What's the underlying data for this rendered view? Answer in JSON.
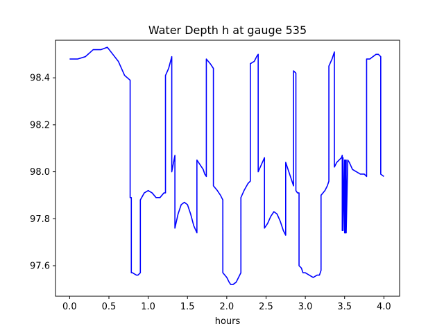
{
  "chart_data": {
    "type": "line",
    "title": "Water Depth h at gauge 535",
    "xlabel": "hours",
    "ylabel": "",
    "xlim": [
      -0.18,
      4.2
    ],
    "ylim": [
      97.47,
      98.56
    ],
    "xticks": [
      0.0,
      0.5,
      1.0,
      1.5,
      2.0,
      2.5,
      3.0,
      3.5,
      4.0
    ],
    "xtick_labels": [
      "0.0",
      "0.5",
      "1.0",
      "1.5",
      "2.0",
      "2.5",
      "3.0",
      "3.5",
      "4.0"
    ],
    "yticks": [
      97.6,
      97.8,
      98.0,
      98.2,
      98.4
    ],
    "ytick_labels": [
      "97.6",
      "97.8",
      "98.0",
      "98.2",
      "98.4"
    ],
    "grid": false,
    "series": [
      {
        "color": "#0000ff",
        "x": [
          0.0,
          0.1,
          0.2,
          0.3,
          0.4,
          0.48,
          0.55,
          0.62,
          0.7,
          0.77,
          0.77,
          0.785,
          0.785,
          0.8,
          0.85,
          0.87,
          0.9,
          0.9,
          0.95,
          1.0,
          1.05,
          1.1,
          1.15,
          1.2,
          1.22,
          1.22,
          1.26,
          1.3,
          1.3,
          1.34,
          1.34,
          1.38,
          1.42,
          1.46,
          1.5,
          1.54,
          1.58,
          1.62,
          1.62,
          1.66,
          1.7,
          1.72,
          1.74,
          1.74,
          1.79,
          1.83,
          1.83,
          1.88,
          1.92,
          1.95,
          1.95,
          2.0,
          2.03,
          2.05,
          2.08,
          2.12,
          2.15,
          2.18,
          2.18,
          2.22,
          2.27,
          2.3,
          2.3,
          2.35,
          2.38,
          2.4,
          2.4,
          2.44,
          2.48,
          2.48,
          2.52,
          2.56,
          2.6,
          2.64,
          2.68,
          2.72,
          2.75,
          2.75,
          2.8,
          2.83,
          2.85,
          2.85,
          2.88,
          2.88,
          2.9,
          2.92,
          2.92,
          2.95,
          2.97,
          3.0,
          3.05,
          3.1,
          3.15,
          3.18,
          3.2,
          3.2,
          3.25,
          3.28,
          3.3,
          3.3,
          3.34,
          3.37,
          3.37,
          3.4,
          3.43,
          3.46,
          3.47,
          3.47,
          3.48,
          3.48,
          3.5,
          3.5,
          3.51,
          3.51,
          3.52,
          3.52,
          3.54,
          3.56,
          3.6,
          3.65,
          3.7,
          3.75,
          3.78,
          3.78,
          3.82,
          3.86,
          3.9,
          3.93,
          3.96,
          3.96,
          4.0
        ],
        "y": [
          98.48,
          98.48,
          98.49,
          98.52,
          98.52,
          98.53,
          98.5,
          98.47,
          98.41,
          98.39,
          97.89,
          97.89,
          97.57,
          97.57,
          97.56,
          97.56,
          97.57,
          97.88,
          97.91,
          97.92,
          97.91,
          97.89,
          97.89,
          97.91,
          97.91,
          98.41,
          98.44,
          98.49,
          98.0,
          98.07,
          97.76,
          97.82,
          97.86,
          97.87,
          97.86,
          97.82,
          97.77,
          97.74,
          98.05,
          98.03,
          98.01,
          97.99,
          97.98,
          98.48,
          98.46,
          98.44,
          97.94,
          97.92,
          97.9,
          97.88,
          97.57,
          97.55,
          97.53,
          97.52,
          97.52,
          97.53,
          97.55,
          97.57,
          97.89,
          97.92,
          97.95,
          97.96,
          98.46,
          98.47,
          98.49,
          98.5,
          98.0,
          98.03,
          98.06,
          97.76,
          97.78,
          97.81,
          97.83,
          97.82,
          97.79,
          97.75,
          97.73,
          98.04,
          97.99,
          97.96,
          97.94,
          98.43,
          98.42,
          97.92,
          97.91,
          97.91,
          97.6,
          97.59,
          97.57,
          97.57,
          97.56,
          97.55,
          97.56,
          97.56,
          97.58,
          97.9,
          97.92,
          97.94,
          97.96,
          98.45,
          98.48,
          98.51,
          98.02,
          98.04,
          98.05,
          98.06,
          98.07,
          97.75,
          98.06,
          97.75,
          98.05,
          97.74,
          98.05,
          97.74,
          98.05,
          97.74,
          98.05,
          98.04,
          98.01,
          98.0,
          97.99,
          97.99,
          97.98,
          98.48,
          98.48,
          98.49,
          98.5,
          98.5,
          98.49,
          97.99,
          97.98
        ]
      }
    ]
  }
}
